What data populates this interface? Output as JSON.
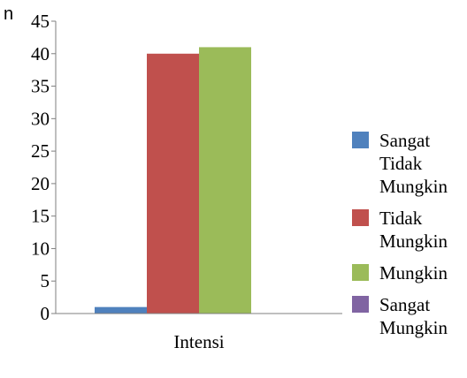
{
  "chart_data": {
    "type": "bar",
    "title": "",
    "ylabel": "n",
    "xlabel": "",
    "categories": [
      "Intensi"
    ],
    "ylim": [
      0,
      45
    ],
    "yticks": [
      0,
      5,
      10,
      15,
      20,
      25,
      30,
      35,
      40,
      45
    ],
    "grid": false,
    "legend_position": "right",
    "series": [
      {
        "name": "Sangat Tidak Mungkin",
        "name_lines": [
          "Sangat",
          "Tidak",
          "Mungkin"
        ],
        "values": [
          1
        ],
        "color": "#4F81BD"
      },
      {
        "name": "Tidak Mungkin",
        "name_lines": [
          "Tidak",
          "Mungkin"
        ],
        "values": [
          40
        ],
        "color": "#C0504D"
      },
      {
        "name": "Mungkin",
        "name_lines": [
          "Mungkin"
        ],
        "values": [
          41
        ],
        "color": "#9BBB59"
      },
      {
        "name": "Sangat Mungkin",
        "name_lines": [
          "Sangat",
          "Mungkin"
        ],
        "values": [
          0
        ],
        "color": "#8064A2"
      }
    ]
  }
}
